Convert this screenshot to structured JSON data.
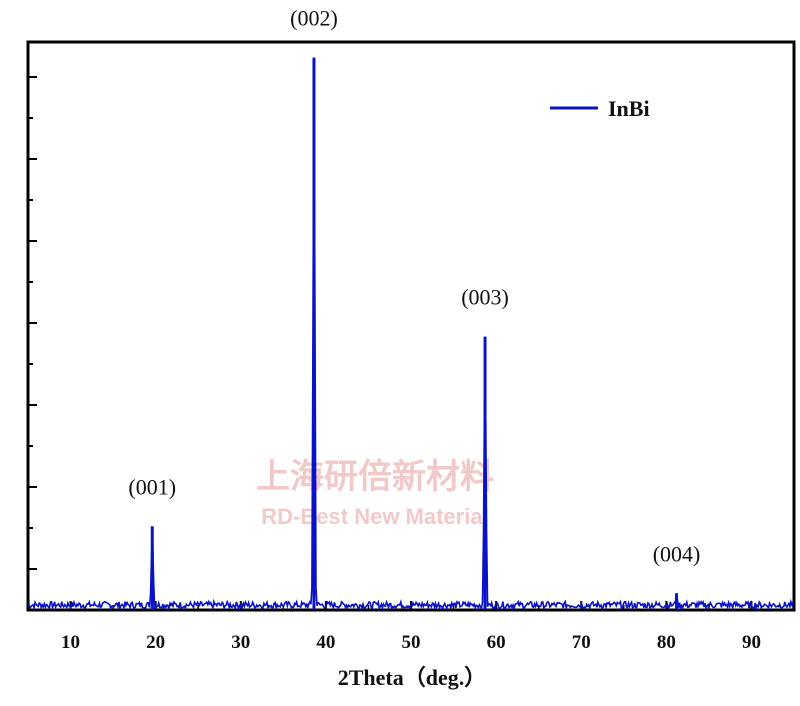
{
  "chart_data": {
    "type": "line",
    "xlabel": "2Theta（deg.）",
    "ylabel": "",
    "xlim": [
      5,
      95
    ],
    "ylim": [
      0,
      1.0
    ],
    "x_ticks": [
      10,
      20,
      30,
      40,
      50,
      60,
      70,
      80,
      90
    ],
    "y_tick_labels_shown": false,
    "grid": false,
    "legend_position": "top-right",
    "series": [
      {
        "name": "InBi",
        "color": "#0a12c8",
        "peaks": [
          {
            "x": 19.6,
            "y": 0.15
          },
          {
            "x": 38.6,
            "y": 0.99
          },
          {
            "x": 58.7,
            "y": 0.49
          },
          {
            "x": 81.2,
            "y": 0.03
          }
        ],
        "baseline": 0.01
      }
    ],
    "annotations": [
      {
        "text": "(001)",
        "x": 19.6,
        "y": 0.15
      },
      {
        "text": "(002)",
        "x": 38.6,
        "y": 0.99
      },
      {
        "text": "(003)",
        "x": 58.7,
        "y": 0.49
      },
      {
        "text": "(004)",
        "x": 81.2,
        "y": 0.03
      }
    ]
  },
  "watermark": {
    "line1": "上海研倍新材料",
    "line2": "RD-Best New Material"
  }
}
